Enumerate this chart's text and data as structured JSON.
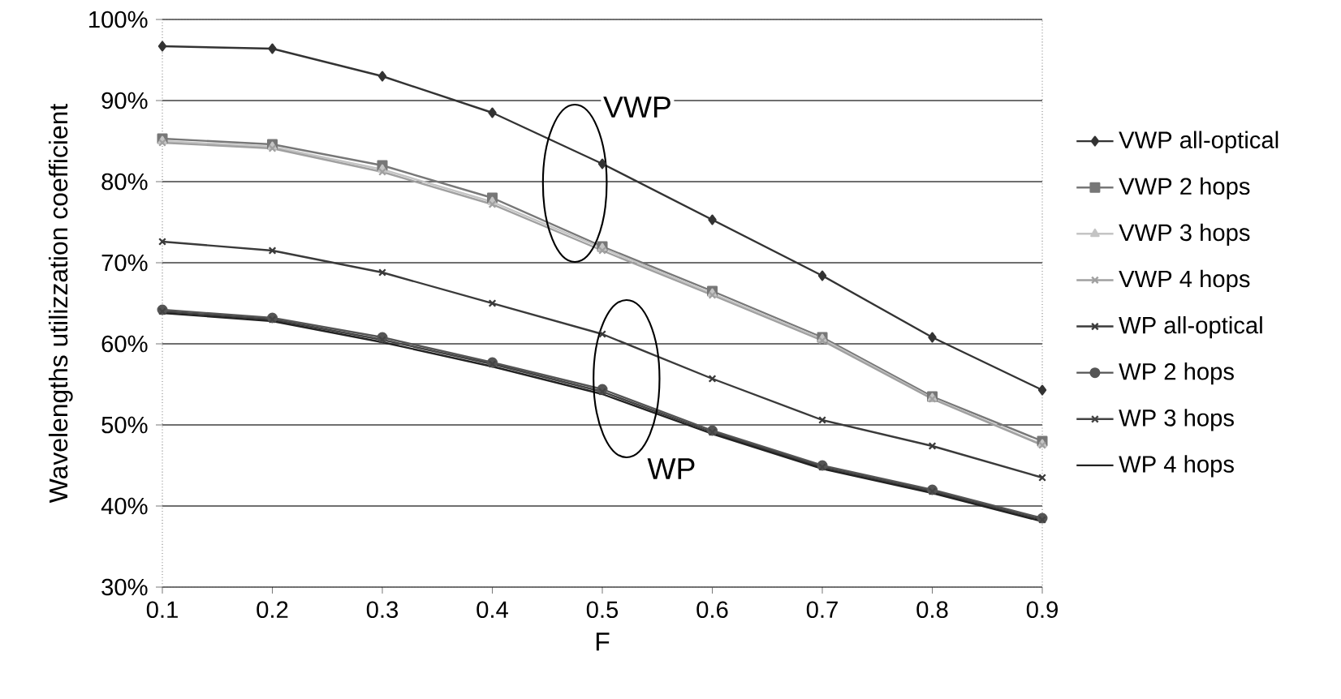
{
  "chart_data": {
    "type": "line",
    "xlabel": "F",
    "ylabel": "Wavelengths utilizzation coefficient",
    "x": [
      0.1,
      0.2,
      0.3,
      0.4,
      0.5,
      0.6,
      0.7,
      0.8,
      0.9
    ],
    "xlim": [
      0.1,
      0.9
    ],
    "xticks": [
      0.1,
      0.2,
      0.3,
      0.4,
      0.5,
      0.6,
      0.7,
      0.8,
      0.9
    ],
    "ylim": [
      30,
      100
    ],
    "yticks": [
      {
        "value": 30,
        "label": "30%"
      },
      {
        "value": 40,
        "label": "40%"
      },
      {
        "value": 50,
        "label": "50%"
      },
      {
        "value": 60,
        "label": "60%"
      },
      {
        "value": 70,
        "label": "70%"
      },
      {
        "value": 80,
        "label": "80%"
      },
      {
        "value": 90,
        "label": "90%"
      },
      {
        "value": 100,
        "label": "100%"
      }
    ],
    "grid": "y",
    "legend": "right",
    "line_style": "solid",
    "series": [
      {
        "name": "VWP all-optical",
        "color": "#333333",
        "marker": "diamond",
        "values": [
          96.7,
          96.4,
          93,
          88.5,
          82.2,
          75.3,
          68.4,
          60.8,
          54.3
        ]
      },
      {
        "name": "VWP 2 hops",
        "color": "#777777",
        "marker": "square",
        "values": [
          85.3,
          84.6,
          82,
          78,
          72,
          66.5,
          60.8,
          53.5,
          48
        ]
      },
      {
        "name": "VWP 3 hops",
        "color": "#c4c4c4",
        "marker": "triangle",
        "values": [
          85,
          84.3,
          81.5,
          77.5,
          71.8,
          66.2,
          60.6,
          53.3,
          47.6
        ]
      },
      {
        "name": "VWP 4 hops",
        "color": "#a0a0a0",
        "marker": "cross",
        "values": [
          84.8,
          84.1,
          81.2,
          77.2,
          71.5,
          66,
          60.4,
          53.2,
          47.5
        ]
      },
      {
        "name": "WP all-optical",
        "color": "#3a3a3a",
        "marker": "cross",
        "values": [
          72.6,
          71.5,
          68.8,
          65,
          61.2,
          55.7,
          50.6,
          47.4,
          43.5
        ]
      },
      {
        "name": "WP 2 hops",
        "color": "#555555",
        "marker": "circle",
        "values": [
          64.2,
          63.2,
          60.8,
          57.7,
          54.4,
          49.3,
          45,
          42,
          38.5
        ]
      },
      {
        "name": "WP 3 hops",
        "color": "#444444",
        "marker": "cross",
        "values": [
          64,
          63,
          60.5,
          57.5,
          54.1,
          49.1,
          44.8,
          41.8,
          38.3
        ]
      },
      {
        "name": "WP 4 hops",
        "color": "#222222",
        "marker": "none",
        "values": [
          63.8,
          62.8,
          60.2,
          57.2,
          53.8,
          48.9,
          44.6,
          41.6,
          38.1
        ]
      }
    ],
    "annotations": [
      "VWP",
      "WP"
    ]
  }
}
